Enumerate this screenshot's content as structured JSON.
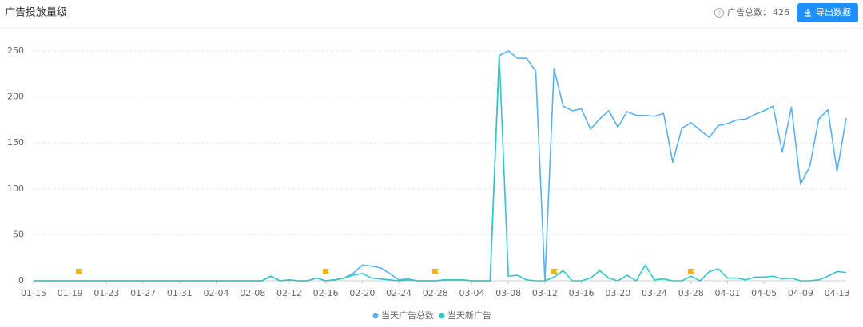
{
  "header": {
    "title": "广告投放量级",
    "total_label": "广告总数：",
    "total": 426,
    "export_button": "导出数据"
  },
  "chart_data": {
    "type": "line",
    "categories": [
      "01-15",
      null,
      null,
      null,
      "01-19",
      null,
      null,
      null,
      "01-23",
      null,
      null,
      null,
      "01-27",
      null,
      null,
      null,
      "01-31",
      null,
      null,
      null,
      "02-04",
      null,
      null,
      null,
      "02-08",
      null,
      null,
      null,
      "02-12",
      null,
      null,
      null,
      "02-16",
      null,
      null,
      null,
      "02-20",
      null,
      null,
      null,
      "02-24",
      null,
      null,
      null,
      "02-28",
      null,
      null,
      null,
      "03-04",
      null,
      null,
      null,
      "03-08",
      null,
      null,
      null,
      "03-12",
      null,
      null,
      null,
      "03-16",
      null,
      null,
      null,
      "03-20",
      null,
      null,
      null,
      "03-24",
      null,
      null,
      null,
      "03-28",
      null,
      null,
      null,
      "04-01",
      null,
      null,
      null,
      "04-05",
      null,
      null,
      null,
      "04-09",
      null,
      null,
      null,
      "04-13",
      null
    ],
    "series": [
      {
        "name": "当天广告总数",
        "color": "#5ab1ef",
        "values": [
          0,
          0,
          0,
          0,
          0,
          0,
          0,
          0,
          0,
          0,
          0,
          0,
          0,
          0,
          0,
          0,
          0,
          0,
          0,
          0,
          0,
          0,
          0,
          0,
          0,
          0,
          5,
          0,
          1,
          0,
          0,
          3,
          0,
          1,
          3,
          8,
          17,
          16,
          14,
          8,
          1,
          2,
          0,
          0,
          0,
          1,
          1,
          1,
          0,
          0,
          0,
          245,
          250,
          242,
          242,
          228,
          0,
          231,
          190,
          185,
          187,
          165,
          176,
          185,
          167,
          184,
          180,
          180,
          179,
          182,
          129,
          166,
          172,
          164,
          156,
          169,
          171,
          175,
          176,
          181,
          185,
          190,
          140,
          189,
          105,
          124,
          176,
          186,
          119,
          177
        ]
      },
      {
        "name": "当天新广告",
        "color": "#2ec7c9",
        "values": [
          0,
          0,
          0,
          0,
          0,
          0,
          0,
          0,
          0,
          0,
          0,
          0,
          0,
          0,
          0,
          0,
          0,
          0,
          0,
          0,
          0,
          0,
          0,
          0,
          0,
          0,
          5,
          0,
          1,
          0,
          0,
          3,
          0,
          1,
          3,
          6,
          8,
          3,
          2,
          1,
          0,
          1,
          0,
          0,
          0,
          1,
          1,
          1,
          0,
          0,
          0,
          245,
          5,
          6,
          1,
          0,
          0,
          4,
          11,
          0,
          0,
          3,
          11,
          3,
          0,
          6,
          0,
          17,
          1,
          2,
          0,
          0,
          5,
          0,
          10,
          13,
          3,
          3,
          1,
          4,
          4,
          5,
          2,
          3,
          0,
          0,
          1,
          5,
          10,
          9
        ]
      }
    ],
    "ylim": [
      0,
      250
    ],
    "yticks": [
      0,
      50,
      100,
      150,
      200,
      250
    ],
    "grid": true,
    "legend": "bottom"
  }
}
